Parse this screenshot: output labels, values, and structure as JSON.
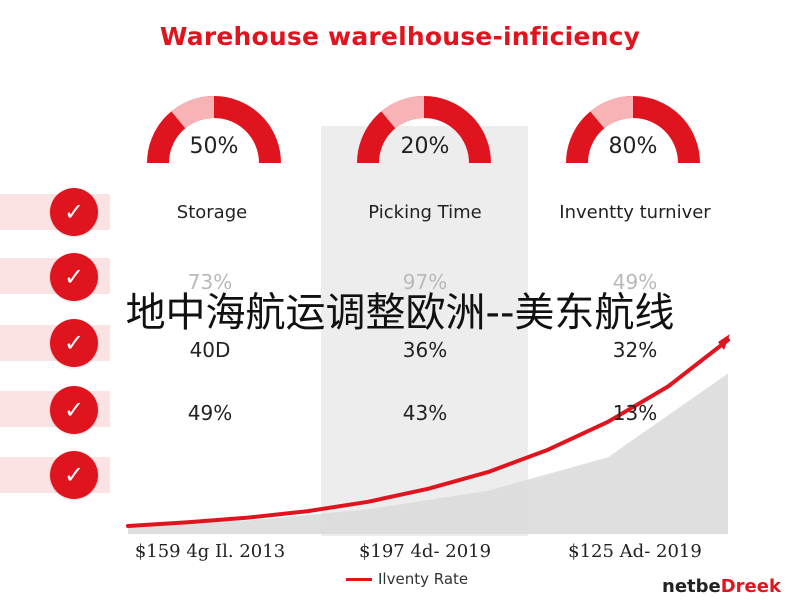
{
  "title": "Warehouse warelhouse-inficiency",
  "brand_colors": {
    "accent": "#e0141e",
    "accent_light": "#f7b3b6",
    "area_fill": "#d9d9d9"
  },
  "gauges": [
    {
      "value_label": "50%",
      "fraction": 0.5,
      "label": "Storage"
    },
    {
      "value_label": "20%",
      "fraction": 0.2,
      "label": "Picking Time"
    },
    {
      "value_label": "80%",
      "fraction": 0.8,
      "label": "Inventty turniver"
    }
  ],
  "table_rows": [
    [
      "73%",
      "97%",
      "49%"
    ],
    [
      "40D",
      "36%",
      "32%"
    ],
    [
      "49%",
      "43%",
      "13%"
    ]
  ],
  "overlay_text": "地中海航运调整欧洲--美东航线",
  "x_labels": [
    "$159 4g Il. 2013",
    "$197 4d- 2019",
    "$125 Ad- 2019"
  ],
  "legend": {
    "label": "Ilventy Rate"
  },
  "brand": {
    "prefix": "netbe",
    "suffix": "Dreek"
  },
  "chart_data": [
    {
      "type": "line",
      "title": "Warehouse warelhouse-inficiency",
      "categories": [
        "$159 4g Il. 2013",
        "$197 4d- 2019",
        "$125 Ad- 2019"
      ],
      "series": [
        {
          "name": "Ilventy Rate",
          "x": [
            0,
            0.1,
            0.2,
            0.3,
            0.4,
            0.5,
            0.6,
            0.7,
            0.8,
            0.9,
            1.0
          ],
          "y": [
            0.0,
            0.02,
            0.045,
            0.08,
            0.13,
            0.2,
            0.29,
            0.41,
            0.56,
            0.75,
            1.0
          ]
        }
      ],
      "area": {
        "x": [
          0,
          0.2,
          0.4,
          0.6,
          0.8,
          1.0
        ],
        "y": [
          0.0,
          0.03,
          0.09,
          0.19,
          0.37,
          0.82
        ]
      },
      "legend_position": "bottom-center",
      "grid": false
    }
  ]
}
